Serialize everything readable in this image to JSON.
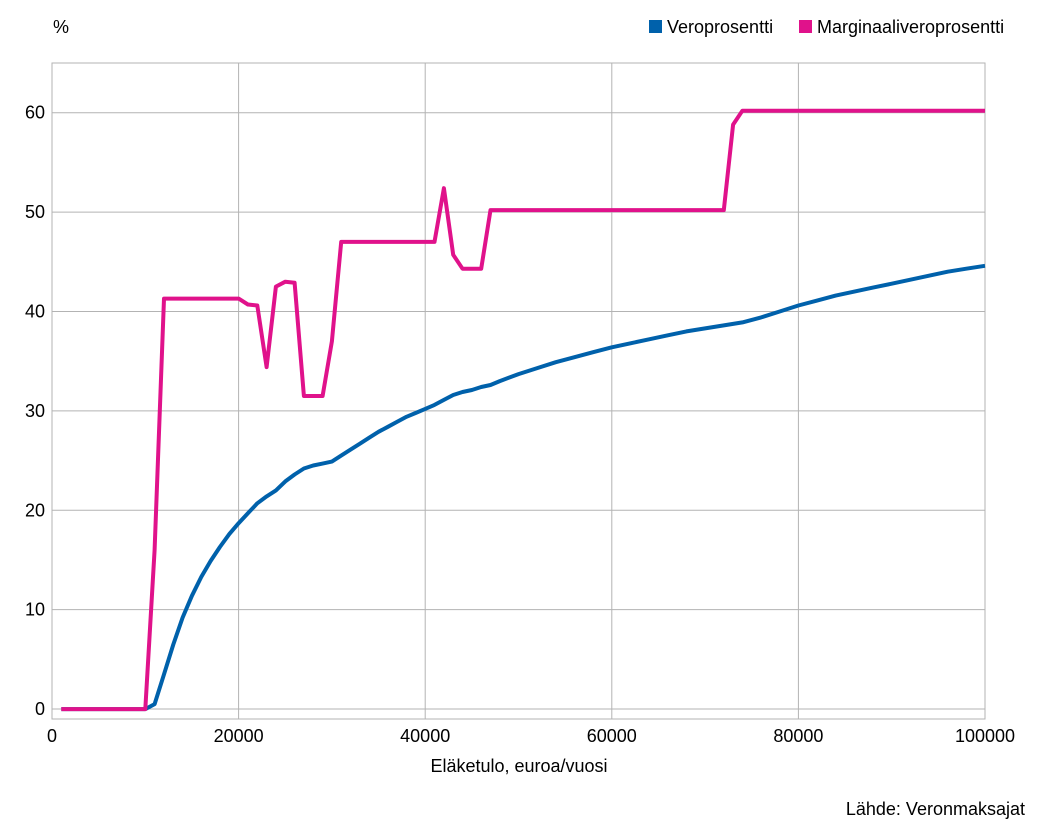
{
  "chart_data": {
    "type": "line",
    "ylabel": "%",
    "xlabel": "Eläketulo, euroa/vuosi",
    "source": "Lähde: Veronmaksajat",
    "xlim": [
      0,
      100000
    ],
    "ylim": [
      -1,
      65
    ],
    "x_ticks": [
      0,
      20000,
      40000,
      60000,
      80000,
      100000
    ],
    "x_tick_labels": [
      "0",
      "20000",
      "40000",
      "60000",
      "80000",
      "100000"
    ],
    "y_ticks": [
      0,
      10,
      20,
      30,
      40,
      50,
      60
    ],
    "y_tick_labels": [
      "0",
      "10",
      "20",
      "30",
      "40",
      "50",
      "60"
    ],
    "grid": true,
    "legend_position": "top-right",
    "series": [
      {
        "name": "Veroprosentti",
        "color": "#0061ab",
        "points": [
          [
            1000,
            0
          ],
          [
            10000,
            0
          ],
          [
            11000,
            0.5
          ],
          [
            12000,
            3.5
          ],
          [
            13000,
            6.5
          ],
          [
            14000,
            9.2
          ],
          [
            15000,
            11.4
          ],
          [
            16000,
            13.3
          ],
          [
            17000,
            14.9
          ],
          [
            18000,
            16.3
          ],
          [
            19000,
            17.6
          ],
          [
            20000,
            18.7
          ],
          [
            21000,
            19.7
          ],
          [
            22000,
            20.7
          ],
          [
            23000,
            21.4
          ],
          [
            24000,
            22
          ],
          [
            25000,
            22.9
          ],
          [
            26000,
            23.6
          ],
          [
            27000,
            24.2
          ],
          [
            28000,
            24.5
          ],
          [
            29000,
            24.7
          ],
          [
            30000,
            24.9
          ],
          [
            31000,
            25.5
          ],
          [
            32000,
            26.1
          ],
          [
            33000,
            26.7
          ],
          [
            34000,
            27.3
          ],
          [
            35000,
            27.9
          ],
          [
            36000,
            28.4
          ],
          [
            37000,
            28.9
          ],
          [
            38000,
            29.4
          ],
          [
            39000,
            29.8
          ],
          [
            40000,
            30.2
          ],
          [
            41000,
            30.6
          ],
          [
            42000,
            31.1
          ],
          [
            43000,
            31.6
          ],
          [
            44000,
            31.9
          ],
          [
            45000,
            32.1
          ],
          [
            46000,
            32.4
          ],
          [
            47000,
            32.6
          ],
          [
            48000,
            33
          ],
          [
            50000,
            33.7
          ],
          [
            52000,
            34.3
          ],
          [
            54000,
            34.9
          ],
          [
            56000,
            35.4
          ],
          [
            58000,
            35.9
          ],
          [
            60000,
            36.4
          ],
          [
            62000,
            36.8
          ],
          [
            64000,
            37.2
          ],
          [
            66000,
            37.6
          ],
          [
            68000,
            38
          ],
          [
            70000,
            38.3
          ],
          [
            72000,
            38.6
          ],
          [
            74000,
            38.9
          ],
          [
            76000,
            39.4
          ],
          [
            78000,
            40
          ],
          [
            80000,
            40.6
          ],
          [
            82000,
            41.1
          ],
          [
            84000,
            41.6
          ],
          [
            86000,
            42
          ],
          [
            88000,
            42.4
          ],
          [
            90000,
            42.8
          ],
          [
            92000,
            43.2
          ],
          [
            94000,
            43.6
          ],
          [
            96000,
            44
          ],
          [
            98000,
            44.3
          ],
          [
            100000,
            44.6
          ]
        ]
      },
      {
        "name": "Marginaaliveroprosentti",
        "color": "#e0128b",
        "points": [
          [
            1000,
            0
          ],
          [
            10000,
            0
          ],
          [
            11000,
            16
          ],
          [
            12000,
            41.3
          ],
          [
            20000,
            41.3
          ],
          [
            21000,
            40.7
          ],
          [
            22000,
            40.6
          ],
          [
            23000,
            34.4
          ],
          [
            24000,
            42.5
          ],
          [
            25000,
            43
          ],
          [
            26000,
            42.9
          ],
          [
            27000,
            31.5
          ],
          [
            29000,
            31.5
          ],
          [
            30000,
            37
          ],
          [
            31000,
            47
          ],
          [
            41000,
            47
          ],
          [
            42000,
            52.4
          ],
          [
            43000,
            45.7
          ],
          [
            44000,
            44.3
          ],
          [
            46000,
            44.3
          ],
          [
            47000,
            50.2
          ],
          [
            72000,
            50.2
          ],
          [
            73000,
            58.8
          ],
          [
            74000,
            60.2
          ],
          [
            100000,
            60.2
          ]
        ]
      }
    ]
  }
}
